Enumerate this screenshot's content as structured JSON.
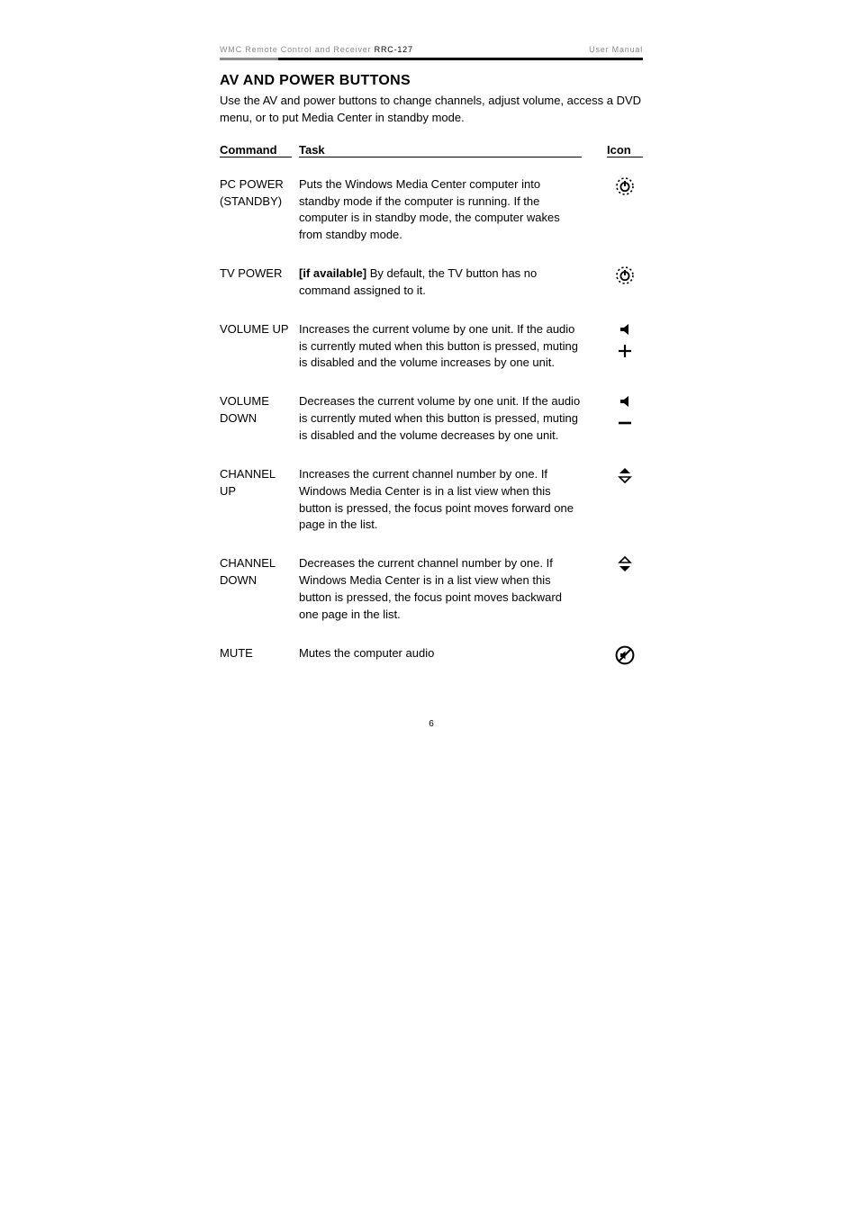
{
  "header": {
    "left_text": "WMC Remote Control and Receiver",
    "model": "RRC-127",
    "right_text": "User Manual"
  },
  "section_title": "AV AND POWER BUTTONS",
  "intro": "Use the AV and power buttons to change channels, adjust volume, access a DVD menu, or to put Media Center in standby mode.",
  "columns": {
    "cmd": "Command",
    "task": "Task",
    "icon": "Icon"
  },
  "rows": [
    {
      "cmd": "PC POWER (STANDBY)",
      "task_plain": "Puts the Windows Media Center computer into standby mode if the computer is running. If the computer is in standby mode, the computer wakes from standby mode.",
      "icons": [
        "power-dashed"
      ]
    },
    {
      "cmd": "TV POWER",
      "task_prefix_bold": "[if available]",
      "task_rest": " By default, the TV button has no command assigned to it.",
      "icons": [
        "power-dashed"
      ]
    },
    {
      "cmd": "VOLUME UP",
      "task_plain": "Increases the current volume by one unit. If the audio is currently muted when this button is pressed, muting is disabled and the volume increases by one unit.",
      "icons": [
        "speaker",
        "plus"
      ]
    },
    {
      "cmd": "VOLUME DOWN",
      "task_plain": "Decreases the current volume by one unit. If the audio is currently muted when this button is pressed, muting is disabled and the volume decreases by one unit.",
      "icons": [
        "speaker",
        "minus"
      ]
    },
    {
      "cmd": "CHANNEL UP",
      "task_plain": "Increases the current channel number by one. If Windows Media Center is in a list view when this button is pressed, the focus point moves forward one page in the list.",
      "icons": [
        "chan-up"
      ]
    },
    {
      "cmd": "CHANNEL DOWN",
      "task_plain": "Decreases the current channel number by one. If Windows Media Center is in a list view when this button is pressed, the focus point moves backward one page in the list.",
      "icons": [
        "chan-down"
      ]
    },
    {
      "cmd": "MUTE",
      "task_plain": "Mutes the computer audio",
      "icons": [
        "mute"
      ]
    }
  ],
  "page_number": "6",
  "colors": {
    "text": "#000000",
    "muted": "#8a8a8a",
    "bg": "#ffffff"
  }
}
